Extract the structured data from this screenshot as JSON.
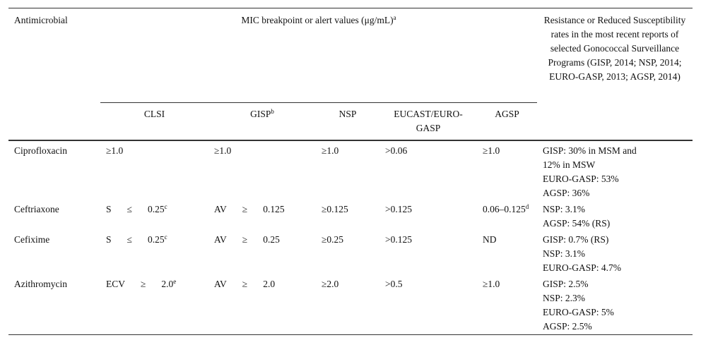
{
  "header": {
    "antimicrobial": "Antimicrobial",
    "mic": {
      "text": "MIC breakpoint or alert values (μg/mL)",
      "sup": "a"
    },
    "rates": "Resistance or Reduced Susceptibility rates in the most recent reports of selected Gonococcal Surveillance Programs (GISP, 2014; NSP, 2014; EURO-GASP, 2013; AGSP, 2014)",
    "columns": [
      {
        "text": "CLSI"
      },
      {
        "text": "GISP",
        "sup": "b"
      },
      {
        "text": "NSP"
      },
      {
        "text": "EUCAST/EURO-GASP"
      },
      {
        "text": "AGSP"
      }
    ]
  },
  "table": {
    "rows": [
      {
        "name": "Ciprofloxacin",
        "values": [
          {
            "parts": [
              "≥1.0"
            ]
          },
          {
            "parts": [
              "≥1.0"
            ]
          },
          {
            "parts": [
              "≥1.0"
            ]
          },
          {
            "parts": [
              ">0.06"
            ]
          },
          {
            "parts": [
              "≥1.0"
            ]
          }
        ],
        "rates": [
          "GISP: 30% in MSM and",
          "12% in MSW",
          "EURO-GASP: 53%",
          "AGSP: 36%"
        ]
      },
      {
        "name": "Ceftriaxone",
        "values": [
          {
            "parts": [
              "S",
              "≤",
              "0.25"
            ],
            "sup": "c"
          },
          {
            "parts": [
              "AV",
              "≥",
              "0.125"
            ]
          },
          {
            "parts": [
              "≥0.125"
            ]
          },
          {
            "parts": [
              ">0.125"
            ]
          },
          {
            "parts": [
              "0.06–0.125"
            ],
            "sup": "d"
          }
        ],
        "rates": [
          "NSP: 3.1%",
          "AGSP: 54% (RS)"
        ]
      },
      {
        "name": "Cefixime",
        "values": [
          {
            "parts": [
              "S",
              "≤",
              "0.25"
            ],
            "sup": "c"
          },
          {
            "parts": [
              "AV",
              "≥",
              "0.25"
            ]
          },
          {
            "parts": [
              "≥0.25"
            ]
          },
          {
            "parts": [
              ">0.125"
            ]
          },
          {
            "parts": [
              "ND"
            ]
          }
        ],
        "rates": [
          "GISP: 0.7% (RS)",
          "NSP: 3.1%",
          "EURO-GASP: 4.7%"
        ]
      },
      {
        "name": "Azithromycin",
        "values": [
          {
            "parts": [
              "ECV",
              "≥",
              "2.0"
            ],
            "sup": "e"
          },
          {
            "parts": [
              "AV",
              "≥",
              "2.0"
            ]
          },
          {
            "parts": [
              "≥2.0"
            ]
          },
          {
            "parts": [
              ">0.5"
            ]
          },
          {
            "parts": [
              "≥1.0"
            ]
          }
        ],
        "rates": [
          "GISP: 2.5%",
          "NSP: 2.3%",
          "EURO-GASP: 5%",
          "AGSP: 2.5%"
        ]
      }
    ]
  }
}
